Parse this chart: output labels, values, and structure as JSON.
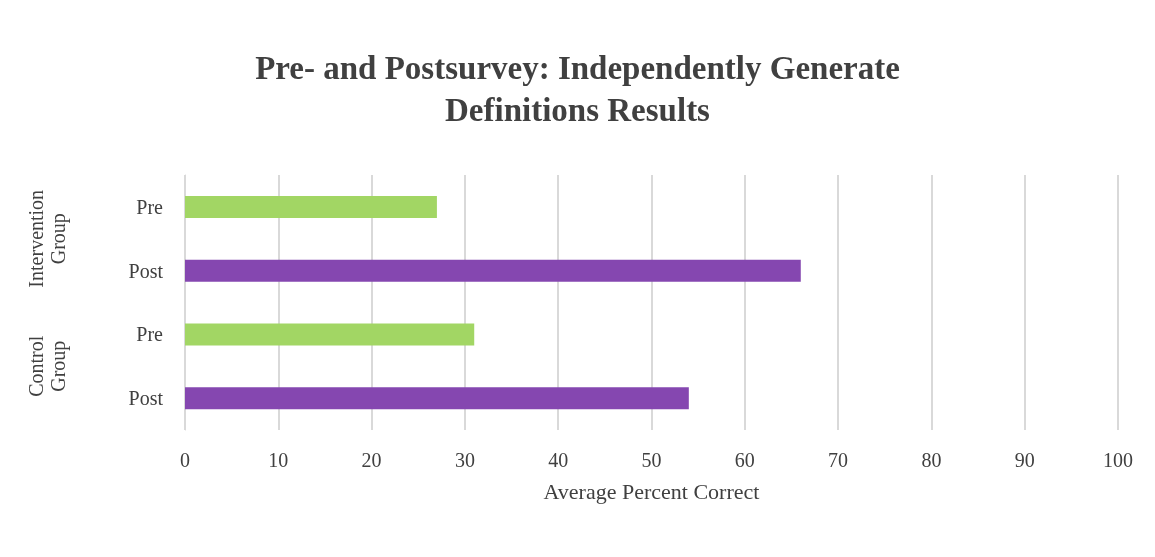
{
  "chart_data": {
    "type": "bar",
    "orientation": "horizontal",
    "title": "Pre- and Postsurvey: Independently Generate\nDefinitions Results",
    "xlabel": "Average Percent Correct",
    "categories": [
      "Pre",
      "Post",
      "Pre",
      "Post"
    ],
    "values": [
      27,
      66,
      31,
      54
    ],
    "colors": [
      "#a2d664",
      "#8547b0",
      "#a2d664",
      "#8547b0"
    ],
    "xlim": [
      0,
      100
    ],
    "xticks": [
      0,
      10,
      20,
      30,
      40,
      50,
      60,
      70,
      80,
      90,
      100
    ],
    "grid": "x",
    "annotations": [
      "Intervention Group",
      "Control Group"
    ]
  }
}
